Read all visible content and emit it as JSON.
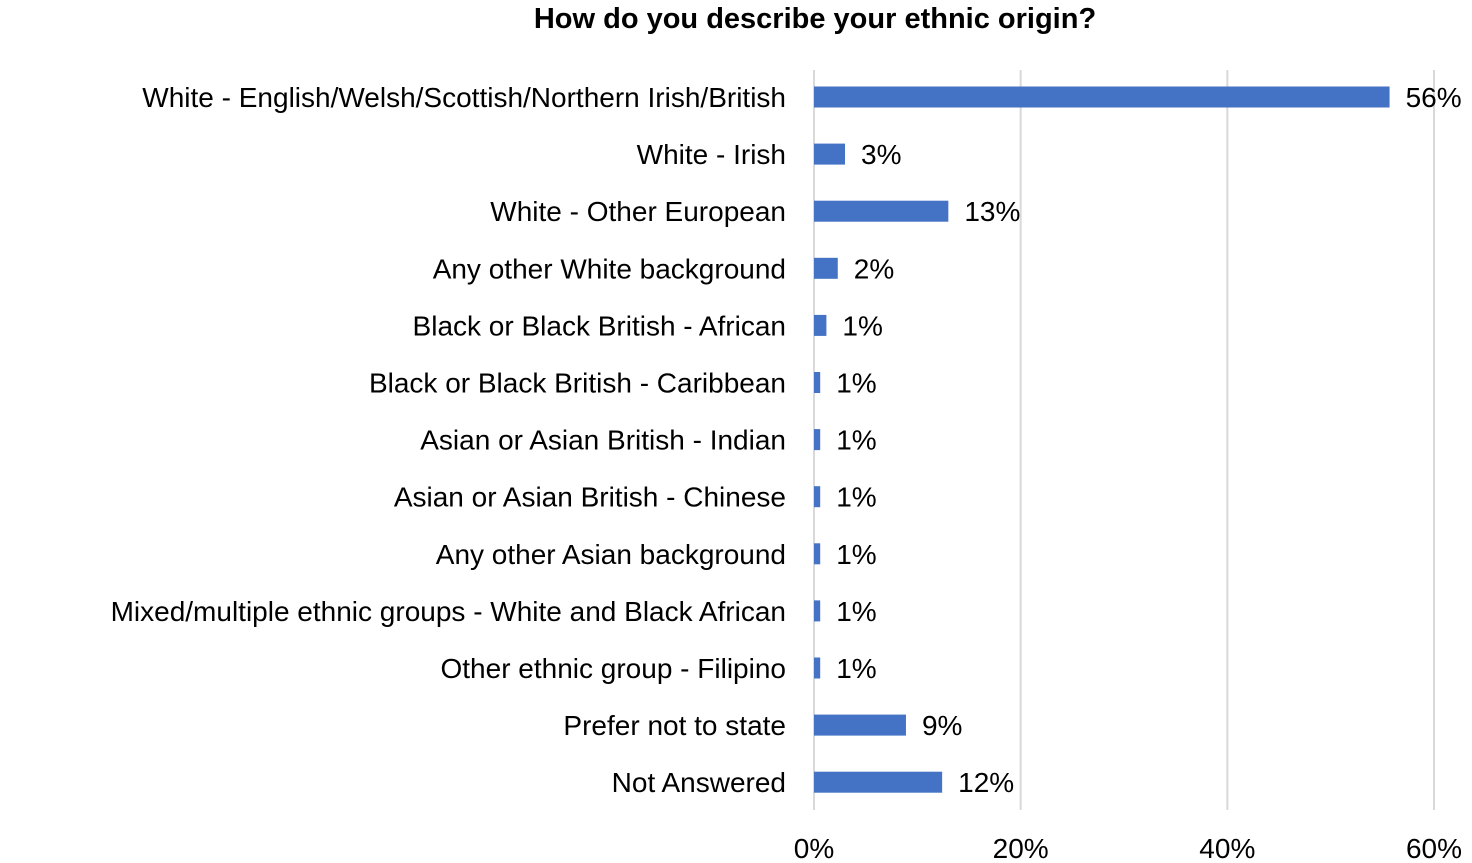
{
  "chart_data": {
    "type": "bar",
    "orientation": "horizontal",
    "title": "How do you describe your ethnic origin?",
    "xlabel": "",
    "ylabel": "",
    "categories": [
      "White - English/Welsh/Scottish/Northern Irish/British",
      "White - Irish",
      "White - Other European",
      "Any other White background",
      "Black or Black British - African",
      "Black or Black British - Caribbean",
      "Asian or Asian British - Indian",
      "Asian or Asian British - Chinese",
      "Any other Asian background",
      "Mixed/multiple ethnic groups - White and Black African",
      "Other ethnic group - Filipino",
      "Prefer not to state",
      "Not Answered"
    ],
    "values": [
      55.7,
      3.0,
      13.0,
      2.3,
      1.2,
      0.6,
      0.6,
      0.6,
      0.6,
      0.6,
      0.6,
      8.9,
      12.4
    ],
    "data_labels": [
      "56%",
      "3%",
      "13%",
      "2%",
      "1%",
      "1%",
      "1%",
      "1%",
      "1%",
      "1%",
      "1%",
      "9%",
      "12%"
    ],
    "xlim": [
      0,
      60
    ],
    "ticks": [
      0,
      20,
      40,
      60
    ],
    "tick_labels": [
      "0%",
      "20%",
      "40%",
      "60%"
    ],
    "grid": true,
    "legend": "none",
    "colors": {
      "bar": "#4472C4",
      "grid": "#D9D9D9",
      "text": "#000000"
    }
  }
}
